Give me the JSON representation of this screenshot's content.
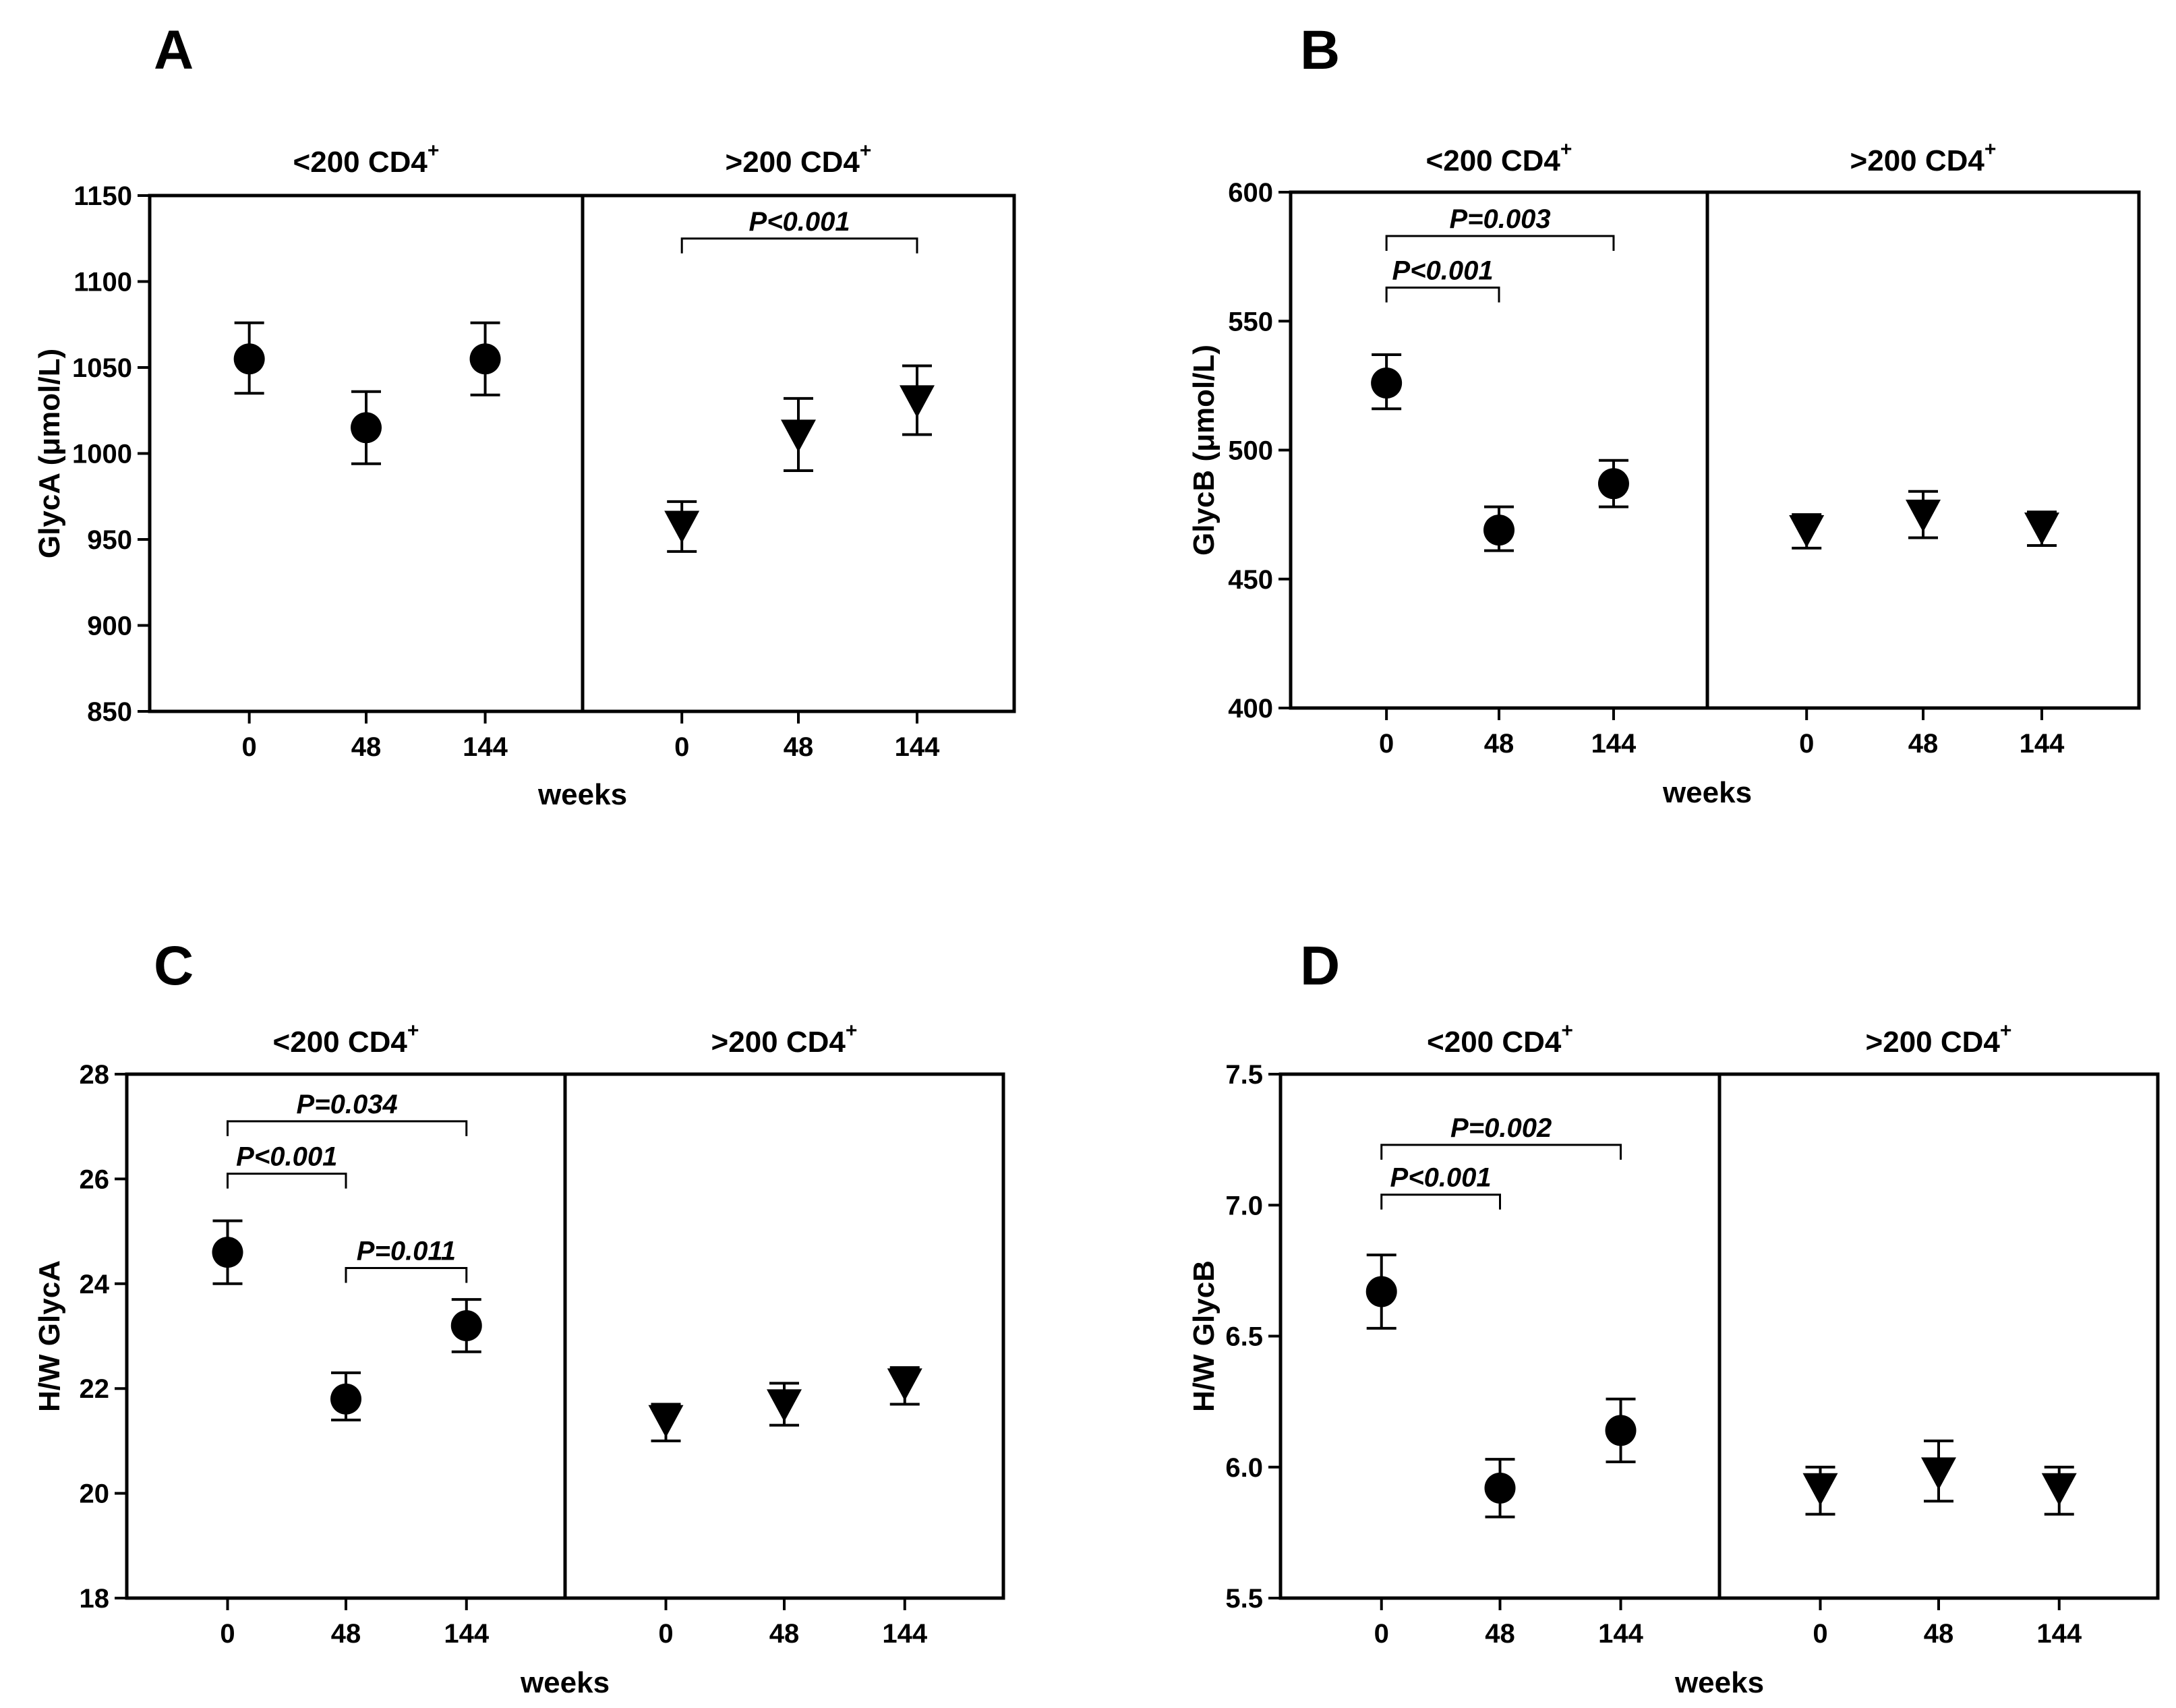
{
  "figure": {
    "panel_letters": [
      "A",
      "B",
      "C",
      "D"
    ],
    "group_labels": {
      "low": "<200 CD4",
      "high": ">200 CD4",
      "superscript": "+"
    },
    "colors": {
      "ink": "#000000",
      "background": "#ffffff"
    }
  },
  "chart_data": [
    {
      "type": "scatter",
      "panel": "A",
      "ylabel": "GlycA (μmol/L)",
      "xlabel": "weeks",
      "ylim": [
        850,
        1150
      ],
      "yticks": [
        "850",
        "900",
        "950",
        "1000",
        "1050",
        "1100",
        "1150"
      ],
      "groups": [
        {
          "name": "<200 CD4+",
          "marker": "circle",
          "x": [
            "0",
            "48",
            "144"
          ],
          "values": [
            1055,
            1015,
            1055
          ],
          "err_lo": [
            1035,
            994,
            1034
          ],
          "err_hi": [
            1076,
            1036,
            1076
          ],
          "brackets": []
        },
        {
          "name": ">200 CD4+",
          "marker": "triangle-down",
          "x": [
            "0",
            "48",
            "144"
          ],
          "values": [
            958,
            1011,
            1031
          ],
          "err_lo": [
            943,
            990,
            1011
          ],
          "err_hi": [
            972,
            1032,
            1051
          ],
          "brackets": [
            {
              "from": 0,
              "to": 2,
              "label": "P<0.001",
              "y": 1125
            }
          ]
        }
      ]
    },
    {
      "type": "scatter",
      "panel": "B",
      "ylabel": "GlycB (μmol/L)",
      "xlabel": "weeks",
      "ylim": [
        400,
        600
      ],
      "yticks": [
        "400",
        "450",
        "500",
        "550",
        "600"
      ],
      "groups": [
        {
          "name": "<200 CD4+",
          "marker": "circle",
          "x": [
            "0",
            "48",
            "144"
          ],
          "values": [
            526,
            469,
            487
          ],
          "err_lo": [
            516,
            461,
            478
          ],
          "err_hi": [
            537,
            478,
            496
          ],
          "brackets": [
            {
              "from": 0,
              "to": 2,
              "label": "P=0.003",
              "y": 583
            },
            {
              "from": 0,
              "to": 1,
              "label": "P<0.001",
              "y": 563
            }
          ]
        },
        {
          "name": ">200 CD4+",
          "marker": "triangle-down",
          "x": [
            "0",
            "48",
            "144"
          ],
          "values": [
            469,
            475,
            470
          ],
          "err_lo": [
            462,
            466,
            463
          ],
          "err_hi": [
            475,
            484,
            476
          ],
          "brackets": []
        }
      ]
    },
    {
      "type": "scatter",
      "panel": "C",
      "ylabel": "H/W GlycA",
      "xlabel": "weeks",
      "ylim": [
        18,
        28
      ],
      "yticks": [
        "18",
        "20",
        "22",
        "24",
        "26",
        "28"
      ],
      "groups": [
        {
          "name": "<200 CD4+",
          "marker": "circle",
          "x": [
            "0",
            "48",
            "144"
          ],
          "values": [
            24.6,
            21.8,
            23.2
          ],
          "err_lo": [
            24.0,
            21.4,
            22.7
          ],
          "err_hi": [
            25.2,
            22.3,
            23.7
          ],
          "brackets": [
            {
              "from": 0,
              "to": 2,
              "label": "P=0.034",
              "y": 27.1
            },
            {
              "from": 0,
              "to": 1,
              "label": "P<0.001",
              "y": 26.1
            },
            {
              "from": 1,
              "to": 2,
              "label": "P=0.011",
              "y": 24.3
            }
          ]
        },
        {
          "name": ">200 CD4+",
          "marker": "triangle-down",
          "x": [
            "0",
            "48",
            "144"
          ],
          "values": [
            21.4,
            21.7,
            22.1
          ],
          "err_lo": [
            21.0,
            21.3,
            21.7
          ],
          "err_hi": [
            21.7,
            22.1,
            22.4
          ],
          "brackets": []
        }
      ]
    },
    {
      "type": "scatter",
      "panel": "D",
      "ylabel": "H/W GlycB",
      "xlabel": "weeks",
      "ylim": [
        5.5,
        7.5
      ],
      "yticks": [
        "5.5",
        "6.0",
        "6.5",
        "7.0",
        "7.5"
      ],
      "groups": [
        {
          "name": "<200 CD4+",
          "marker": "circle",
          "x": [
            "0",
            "48",
            "144"
          ],
          "values": [
            6.67,
            5.92,
            6.14
          ],
          "err_lo": [
            6.53,
            5.81,
            6.02
          ],
          "err_hi": [
            6.81,
            6.03,
            6.26
          ],
          "brackets": [
            {
              "from": 0,
              "to": 2,
              "label": "P=0.002",
              "y": 7.23
            },
            {
              "from": 0,
              "to": 1,
              "label": "P<0.001",
              "y": 7.04
            }
          ]
        },
        {
          "name": ">200 CD4+",
          "marker": "triangle-down",
          "x": [
            "0",
            "48",
            "144"
          ],
          "values": [
            5.92,
            5.98,
            5.92
          ],
          "err_lo": [
            5.82,
            5.87,
            5.82
          ],
          "err_hi": [
            6.0,
            6.1,
            6.0
          ],
          "brackets": []
        }
      ]
    }
  ]
}
